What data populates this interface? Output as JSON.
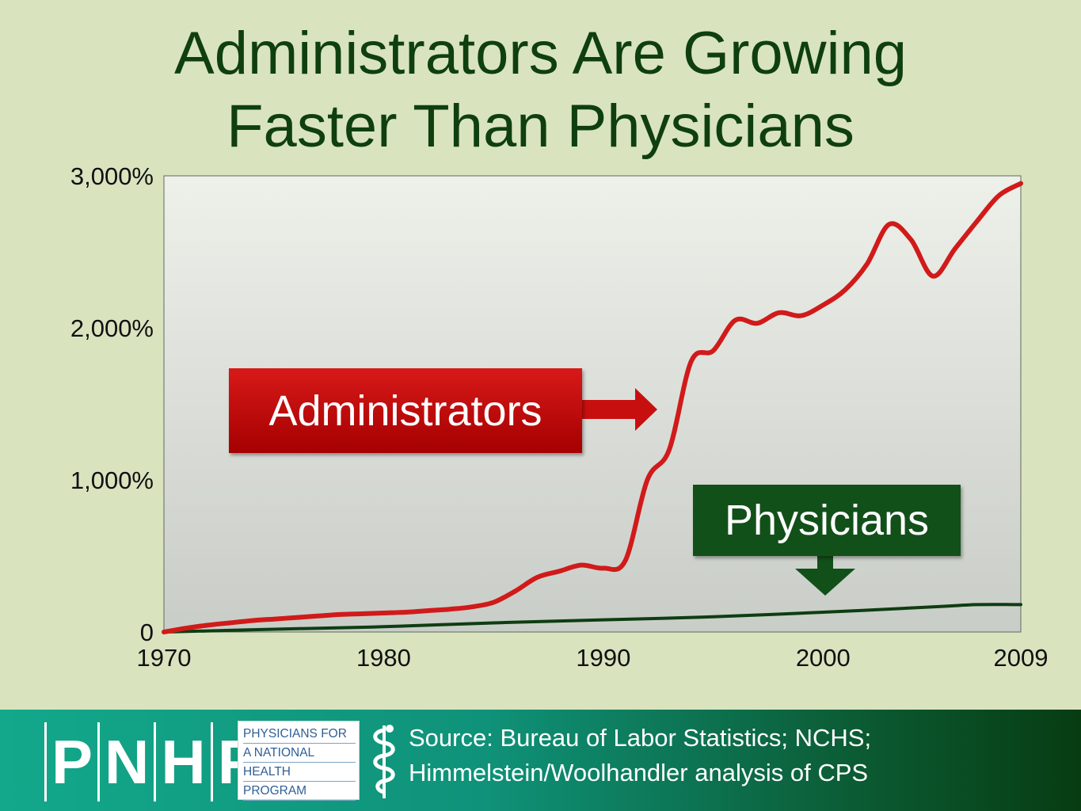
{
  "title": {
    "line1": "Administrators Are Growing",
    "line2": "Faster Than Physicians"
  },
  "chart_data": {
    "type": "line",
    "xlim": [
      1970,
      2009
    ],
    "ylim": [
      0,
      3000
    ],
    "x_ticks": [
      1970,
      1980,
      1990,
      2000,
      2009
    ],
    "x_tick_labels": [
      "1970",
      "1980",
      "1990",
      "2000",
      "2009"
    ],
    "y_ticks": [
      0,
      1000,
      2000,
      3000
    ],
    "y_tick_labels": [
      "0",
      "1,000%",
      "2,000%",
      "3,000%"
    ],
    "grid": false,
    "colors": {
      "administrators": "#d11a1a",
      "physicians": "#0e3d12",
      "plot_bg_top": "#eef0ea",
      "plot_bg_bottom": "#c9cdc7"
    },
    "series": [
      {
        "name": "Administrators",
        "x": [
          1970,
          1971,
          1972,
          1973,
          1974,
          1975,
          1976,
          1977,
          1978,
          1979,
          1980,
          1981,
          1982,
          1983,
          1984,
          1985,
          1986,
          1987,
          1988,
          1989,
          1990,
          1991,
          1992,
          1993,
          1994,
          1995,
          1996,
          1997,
          1998,
          1999,
          2000,
          2001,
          2002,
          2003,
          2004,
          2005,
          2006,
          2007,
          2008,
          2009
        ],
        "values": [
          0,
          25,
          45,
          60,
          75,
          85,
          95,
          105,
          115,
          120,
          125,
          130,
          140,
          150,
          165,
          195,
          270,
          360,
          400,
          440,
          420,
          470,
          1000,
          1200,
          1780,
          1850,
          2050,
          2030,
          2100,
          2080,
          2150,
          2250,
          2420,
          2680,
          2580,
          2340,
          2520,
          2700,
          2870,
          2950
        ]
      },
      {
        "name": "Physicians",
        "x": [
          1970,
          1975,
          1980,
          1985,
          1990,
          1995,
          2000,
          2005,
          2007,
          2009
        ],
        "values": [
          0,
          18,
          35,
          60,
          80,
          100,
          130,
          165,
          180,
          180
        ]
      }
    ],
    "annotations": [
      {
        "label": "Administrators",
        "target_x": 1992.5,
        "target_y": 1470
      },
      {
        "label": "Physicians",
        "target_x": 2001,
        "target_y": 240
      }
    ]
  },
  "footer": {
    "logo_letters": [
      "P",
      "N",
      "H",
      "P"
    ],
    "logo_box_lines": [
      "PHYSICIANS FOR",
      "A NATIONAL",
      "HEALTH",
      "PROGRAM"
    ],
    "source_line1": "Source: Bureau of Labor Statistics; NCHS;",
    "source_line2": "Himmelstein/Woolhandler analysis of CPS"
  }
}
